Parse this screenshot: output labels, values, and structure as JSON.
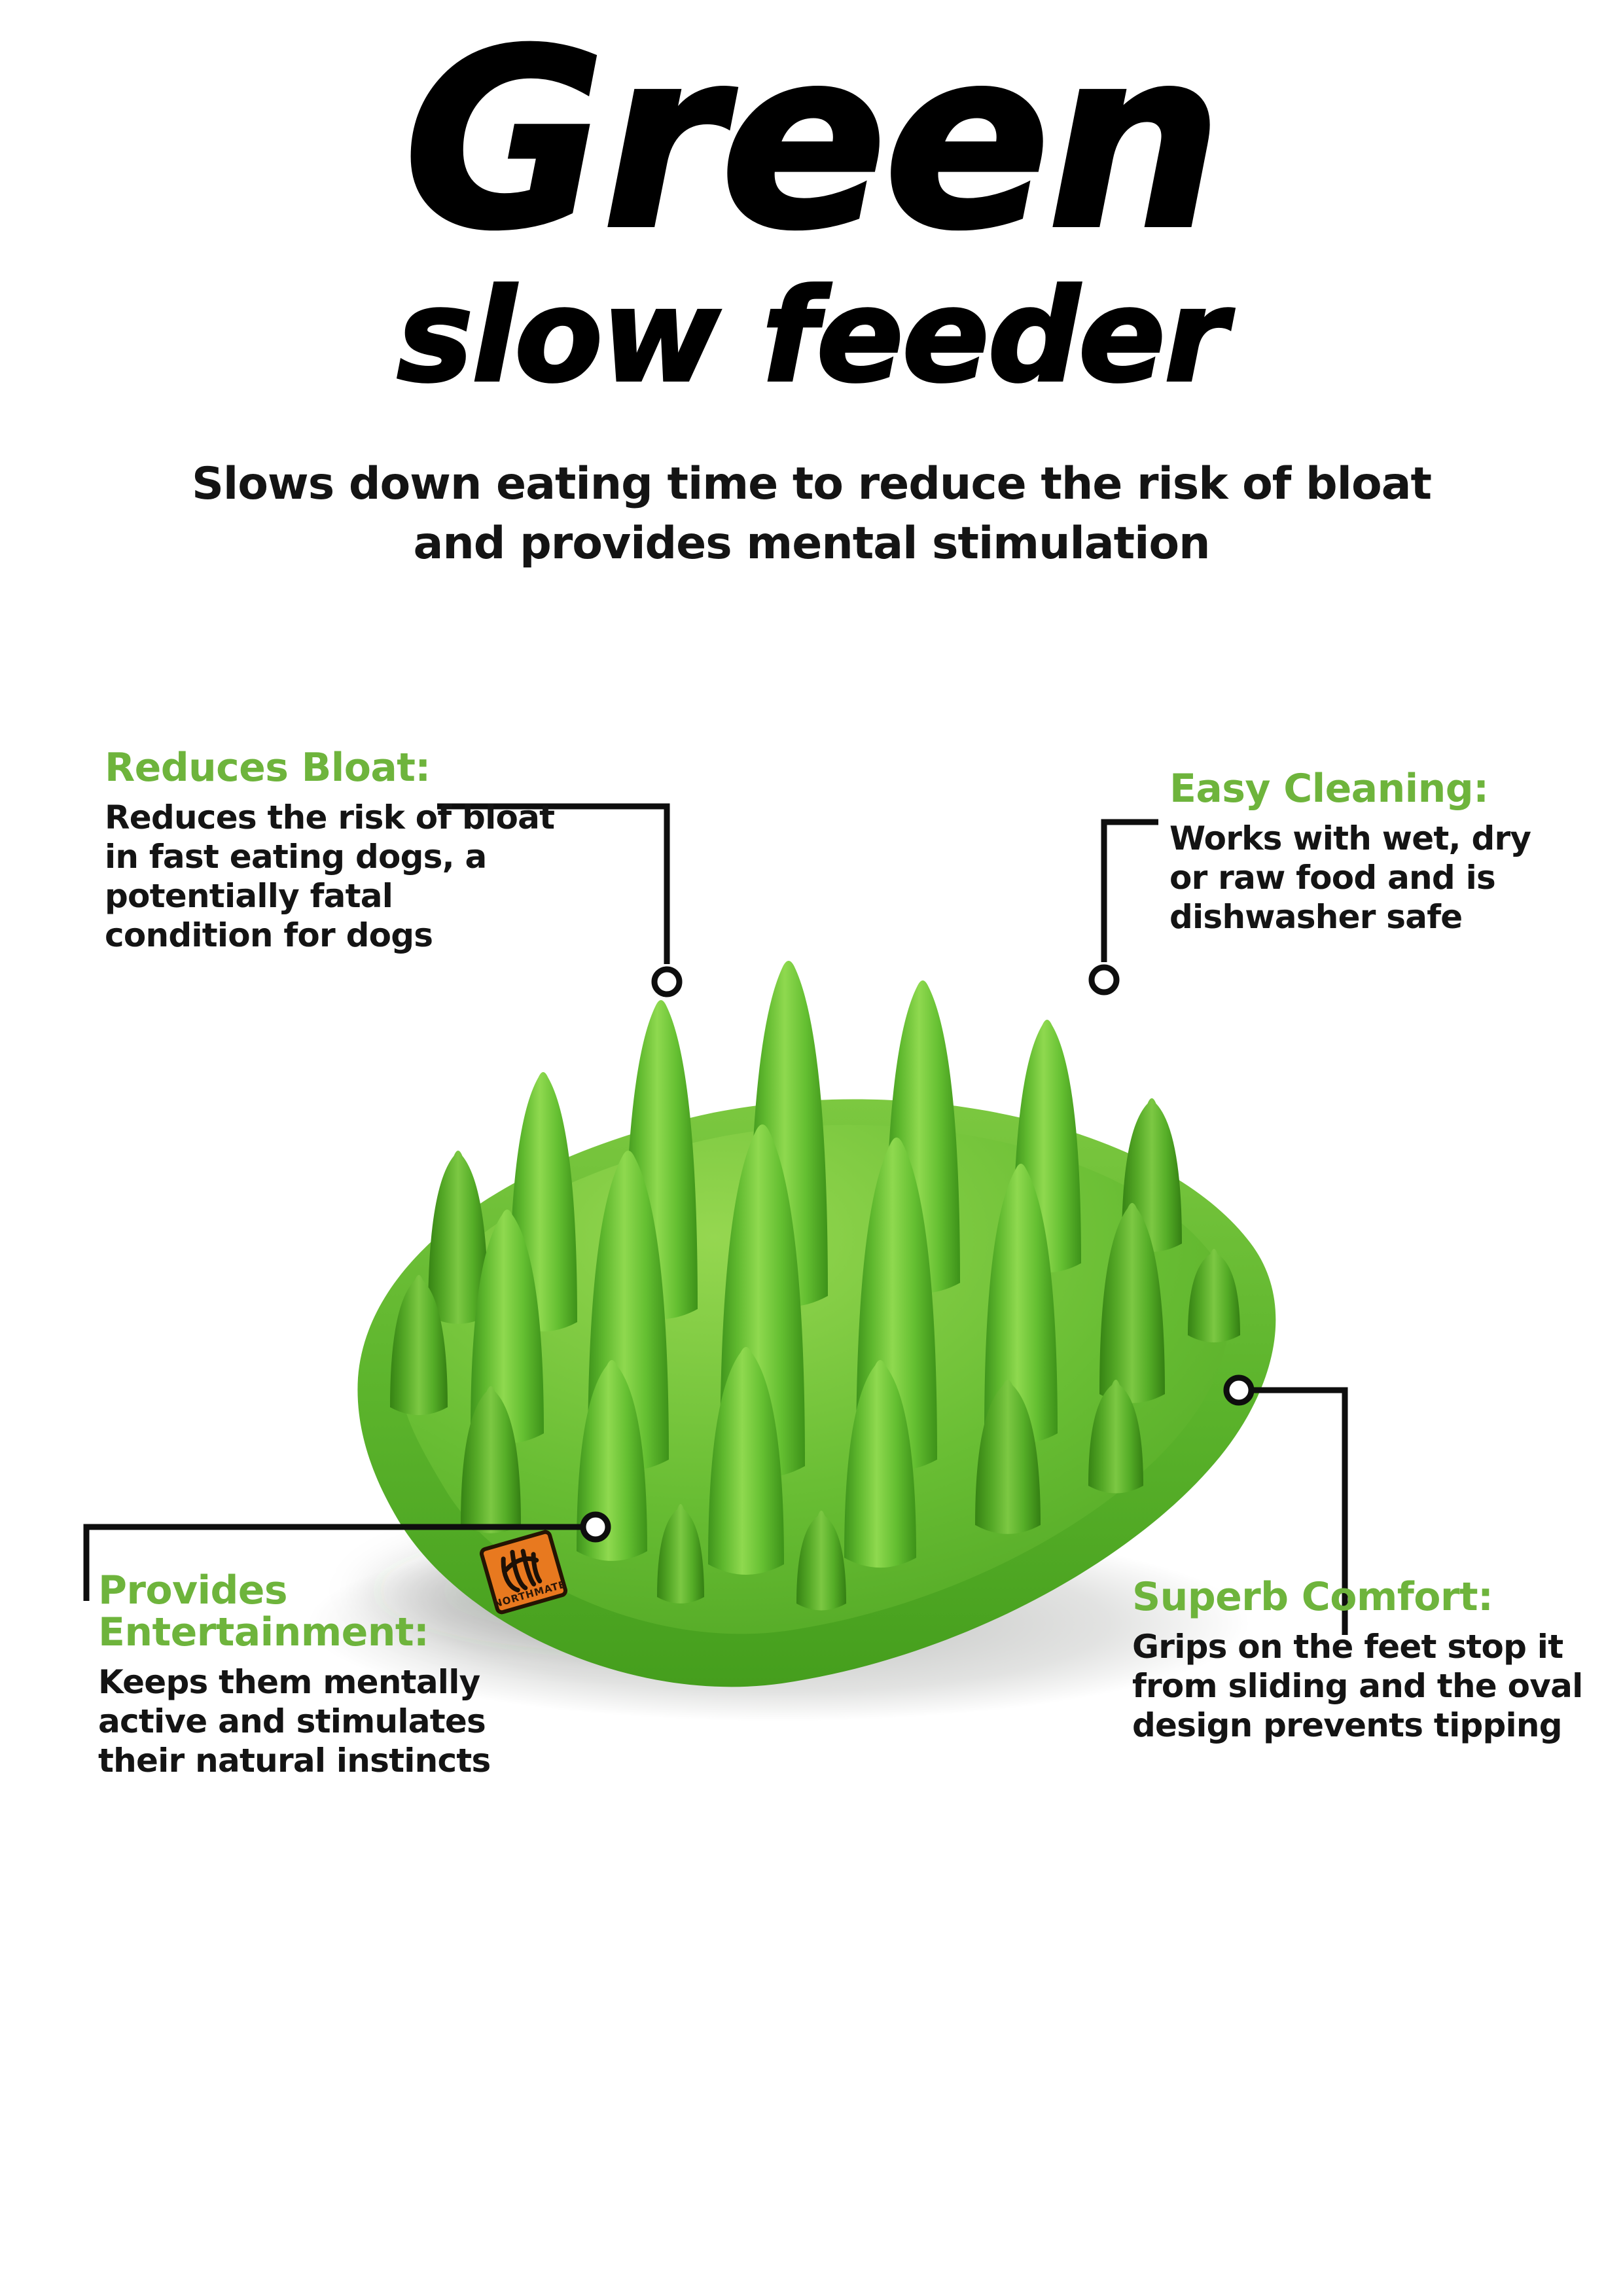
{
  "header": {
    "title": "Green",
    "subtitle": "slow feeder",
    "tagline": "Slows down eating time to reduce the risk of bloat\nand provides mental stimulation"
  },
  "features": [
    {
      "id": "reduces-bloat",
      "heading": "Reduces Bloat:",
      "body": "Reduces the risk of bloat\nin fast eating dogs, a\npotentially fatal\ncondition for dogs"
    },
    {
      "id": "easy-cleaning",
      "heading": "Easy Cleaning:",
      "body": "Works with wet, dry\nor raw food and is\ndishwasher safe"
    },
    {
      "id": "provides-entertainment",
      "heading": "Provides Entertainment:",
      "body": "Keeps them mentally\nactive and stimulates\ntheir natural instincts"
    },
    {
      "id": "superb-comfort",
      "heading": "Superb Comfort:",
      "body": "Grips on the feet stop it\nfrom sliding and the oval\ndesign prevents tipping"
    }
  ],
  "product": {
    "label": "NORTHMATE"
  },
  "colors": {
    "accent": "#6EB43C",
    "ink": "#141414",
    "line": "#0e0e0e",
    "bowl_light": "#8FD94F",
    "bowl_mid": "#5FB82E",
    "bowl_dark": "#3F941C",
    "label_orange": "#E8791F"
  }
}
